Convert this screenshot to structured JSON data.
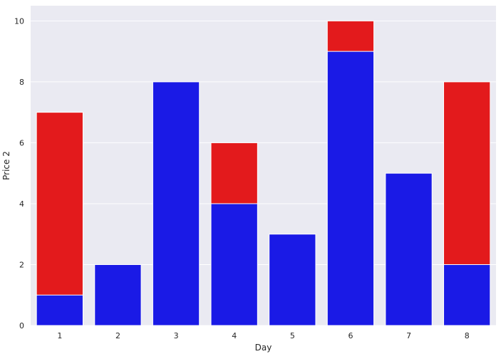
{
  "chart_data": {
    "type": "bar",
    "xlabel": "Day",
    "ylabel": "Price 2",
    "categories": [
      "1",
      "2",
      "3",
      "4",
      "5",
      "6",
      "7",
      "8"
    ],
    "series": [
      {
        "color": "#e31a1c",
        "values": [
          7,
          0,
          0,
          6,
          0,
          10,
          0,
          8
        ]
      },
      {
        "color": "#1a1ae6",
        "values": [
          1,
          2,
          8,
          4,
          3,
          9,
          5,
          2
        ]
      }
    ],
    "yticks": [
      "0",
      "2",
      "4",
      "6",
      "8",
      "10"
    ],
    "ylim": [
      0,
      10.5
    ],
    "grid": true,
    "background": "#eaeaf2"
  }
}
